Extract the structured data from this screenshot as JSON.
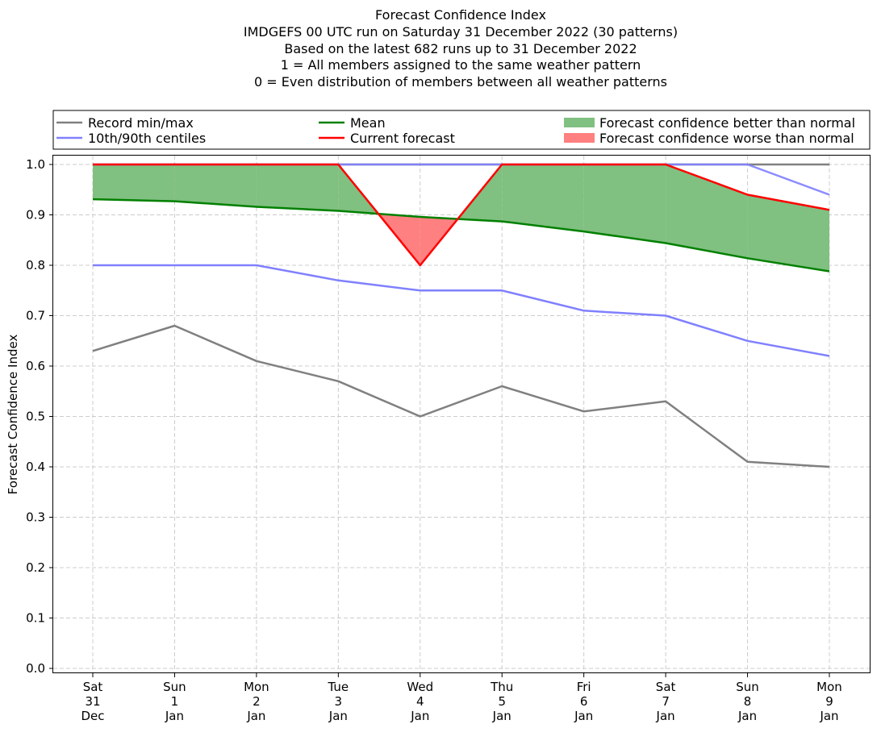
{
  "chart_data": {
    "type": "line",
    "title_lines": [
      "Forecast Confidence Index",
      "IMDGEFS 00 UTC run on Saturday 31 December 2022 (30 patterns)",
      "Based on the latest 682 runs up to 31 December 2022",
      "1 = All members assigned to the same weather pattern",
      "0 = Even distribution of members between all weather patterns"
    ],
    "xlabel": "",
    "ylabel": "Forecast Confidence Index",
    "ylim": [
      0.0,
      1.0
    ],
    "yticks": [
      "0.0",
      "0.1",
      "0.2",
      "0.3",
      "0.4",
      "0.5",
      "0.6",
      "0.7",
      "0.8",
      "0.9",
      "1.0"
    ],
    "grid": true,
    "legend_position": "top",
    "categories": [
      [
        "Sat",
        "31",
        "Dec"
      ],
      [
        "Sun",
        "1",
        "Jan"
      ],
      [
        "Mon",
        "2",
        "Jan"
      ],
      [
        "Tue",
        "3",
        "Jan"
      ],
      [
        "Wed",
        "4",
        "Jan"
      ],
      [
        "Thu",
        "5",
        "Jan"
      ],
      [
        "Fri",
        "6",
        "Jan"
      ],
      [
        "Sat",
        "7",
        "Jan"
      ],
      [
        "Sun",
        "8",
        "Jan"
      ],
      [
        "Mon",
        "9",
        "Jan"
      ]
    ],
    "series": [
      {
        "name": "Record min",
        "color": "#808080",
        "values": [
          0.63,
          0.68,
          0.61,
          0.57,
          0.5,
          0.56,
          0.51,
          0.53,
          0.41,
          0.4
        ]
      },
      {
        "name": "Record max",
        "color": "#808080",
        "values": [
          1.0,
          1.0,
          1.0,
          1.0,
          1.0,
          1.0,
          1.0,
          1.0,
          1.0,
          1.0
        ]
      },
      {
        "name": "10th centile",
        "color": "#8080ff",
        "values": [
          0.8,
          0.8,
          0.8,
          0.77,
          0.75,
          0.75,
          0.71,
          0.7,
          0.65,
          0.62
        ]
      },
      {
        "name": "90th centile",
        "color": "#8080ff",
        "values": [
          1.0,
          1.0,
          1.0,
          1.0,
          1.0,
          1.0,
          1.0,
          1.0,
          1.0,
          0.94
        ]
      },
      {
        "name": "Mean",
        "color": "#008000",
        "values": [
          0.931,
          0.927,
          0.916,
          0.908,
          0.896,
          0.887,
          0.867,
          0.844,
          0.814,
          0.788
        ]
      },
      {
        "name": "Current forecast",
        "color": "#ff0000",
        "values": [
          1.0,
          1.0,
          1.0,
          1.0,
          0.8,
          1.0,
          1.0,
          1.0,
          0.94,
          0.91
        ]
      }
    ],
    "legend": [
      {
        "label": "Record min/max",
        "color": "#808080",
        "kind": "line"
      },
      {
        "label": "10th/90th centiles",
        "color": "#8080ff",
        "kind": "line"
      },
      {
        "label": "Mean",
        "color": "#008000",
        "kind": "line"
      },
      {
        "label": "Current forecast",
        "color": "#ff0000",
        "kind": "line"
      },
      {
        "label": "Forecast confidence better than normal",
        "color": "#80c080",
        "kind": "patch"
      },
      {
        "label": "Forecast confidence worse than normal",
        "color": "#ff8080",
        "kind": "patch"
      }
    ],
    "fill_better_color": "#80c080",
    "fill_worse_color": "#ff8080"
  }
}
